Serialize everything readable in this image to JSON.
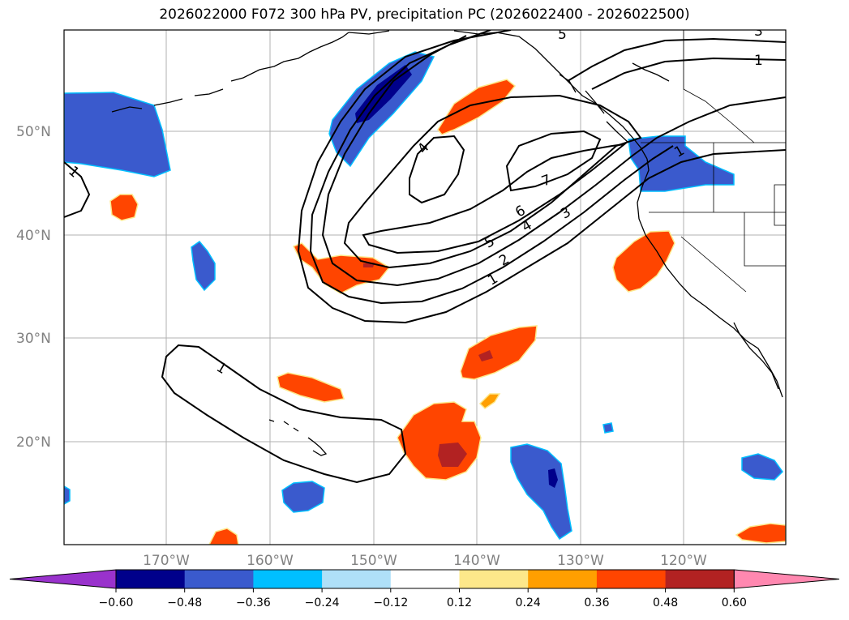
{
  "title": "2026022000 F072 300 hPa PV, precipitation PC (2026022400 - 2026022500)",
  "lat_labels": [
    "50°N",
    "40°N",
    "30°N",
    "20°N"
  ],
  "lon_labels": [
    "170°W",
    "160°W",
    "150°W",
    "140°W",
    "130°W",
    "120°W"
  ],
  "contour_labels": [
    "1",
    "2",
    "3",
    "4",
    "4",
    "5",
    "6",
    "7",
    "1",
    "1",
    "1",
    "1",
    "5",
    "3"
  ],
  "colorbar": {
    "tick_labels": [
      "−0.60",
      "−0.48",
      "−0.36",
      "−0.24",
      "−0.12",
      "0.12",
      "0.24",
      "0.36",
      "0.48",
      "0.60"
    ],
    "colors": [
      "#9932cc",
      "#00008b",
      "#3a5acd",
      "#00bfff",
      "#afe0f8",
      "#ffffff",
      "#fde88a",
      "#ff9f00",
      "#ff4500",
      "#b22222",
      "#ff88b0"
    ]
  },
  "colors": {
    "coast": "#000000",
    "grid": "#b0b0b0",
    "contour": "#000000"
  }
}
